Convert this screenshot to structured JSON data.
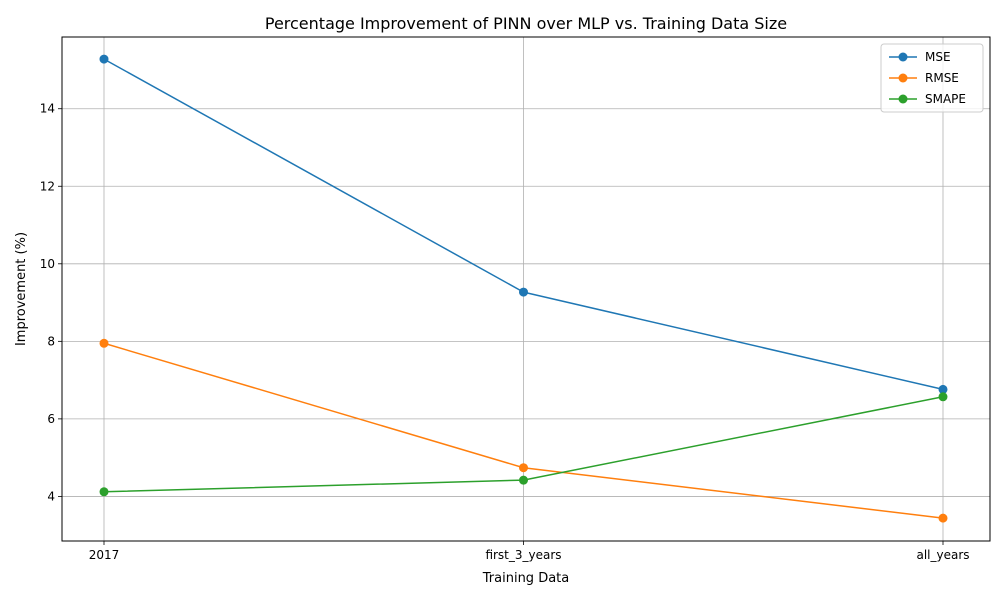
{
  "chart_data": {
    "type": "line",
    "title": "Percentage Improvement of PINN over MLP vs. Training Data Size",
    "xlabel": "Training Data",
    "ylabel": "Improvement (%)",
    "categories": [
      "2017",
      "first_3_years",
      "all_years"
    ],
    "ylim": [
      2.85,
      15.85
    ],
    "yticks": [
      4,
      6,
      8,
      10,
      12,
      14
    ],
    "grid": true,
    "legend_position": "top-right",
    "series": [
      {
        "name": "MSE",
        "color": "#1f77b4",
        "marker": "circle",
        "values": [
          15.28,
          9.27,
          6.76
        ]
      },
      {
        "name": "RMSE",
        "color": "#ff7f0e",
        "marker": "circle",
        "values": [
          7.95,
          4.74,
          3.44
        ]
      },
      {
        "name": "SMAPE",
        "color": "#2ca02c",
        "marker": "circle",
        "values": [
          4.12,
          4.42,
          6.57
        ]
      }
    ]
  }
}
